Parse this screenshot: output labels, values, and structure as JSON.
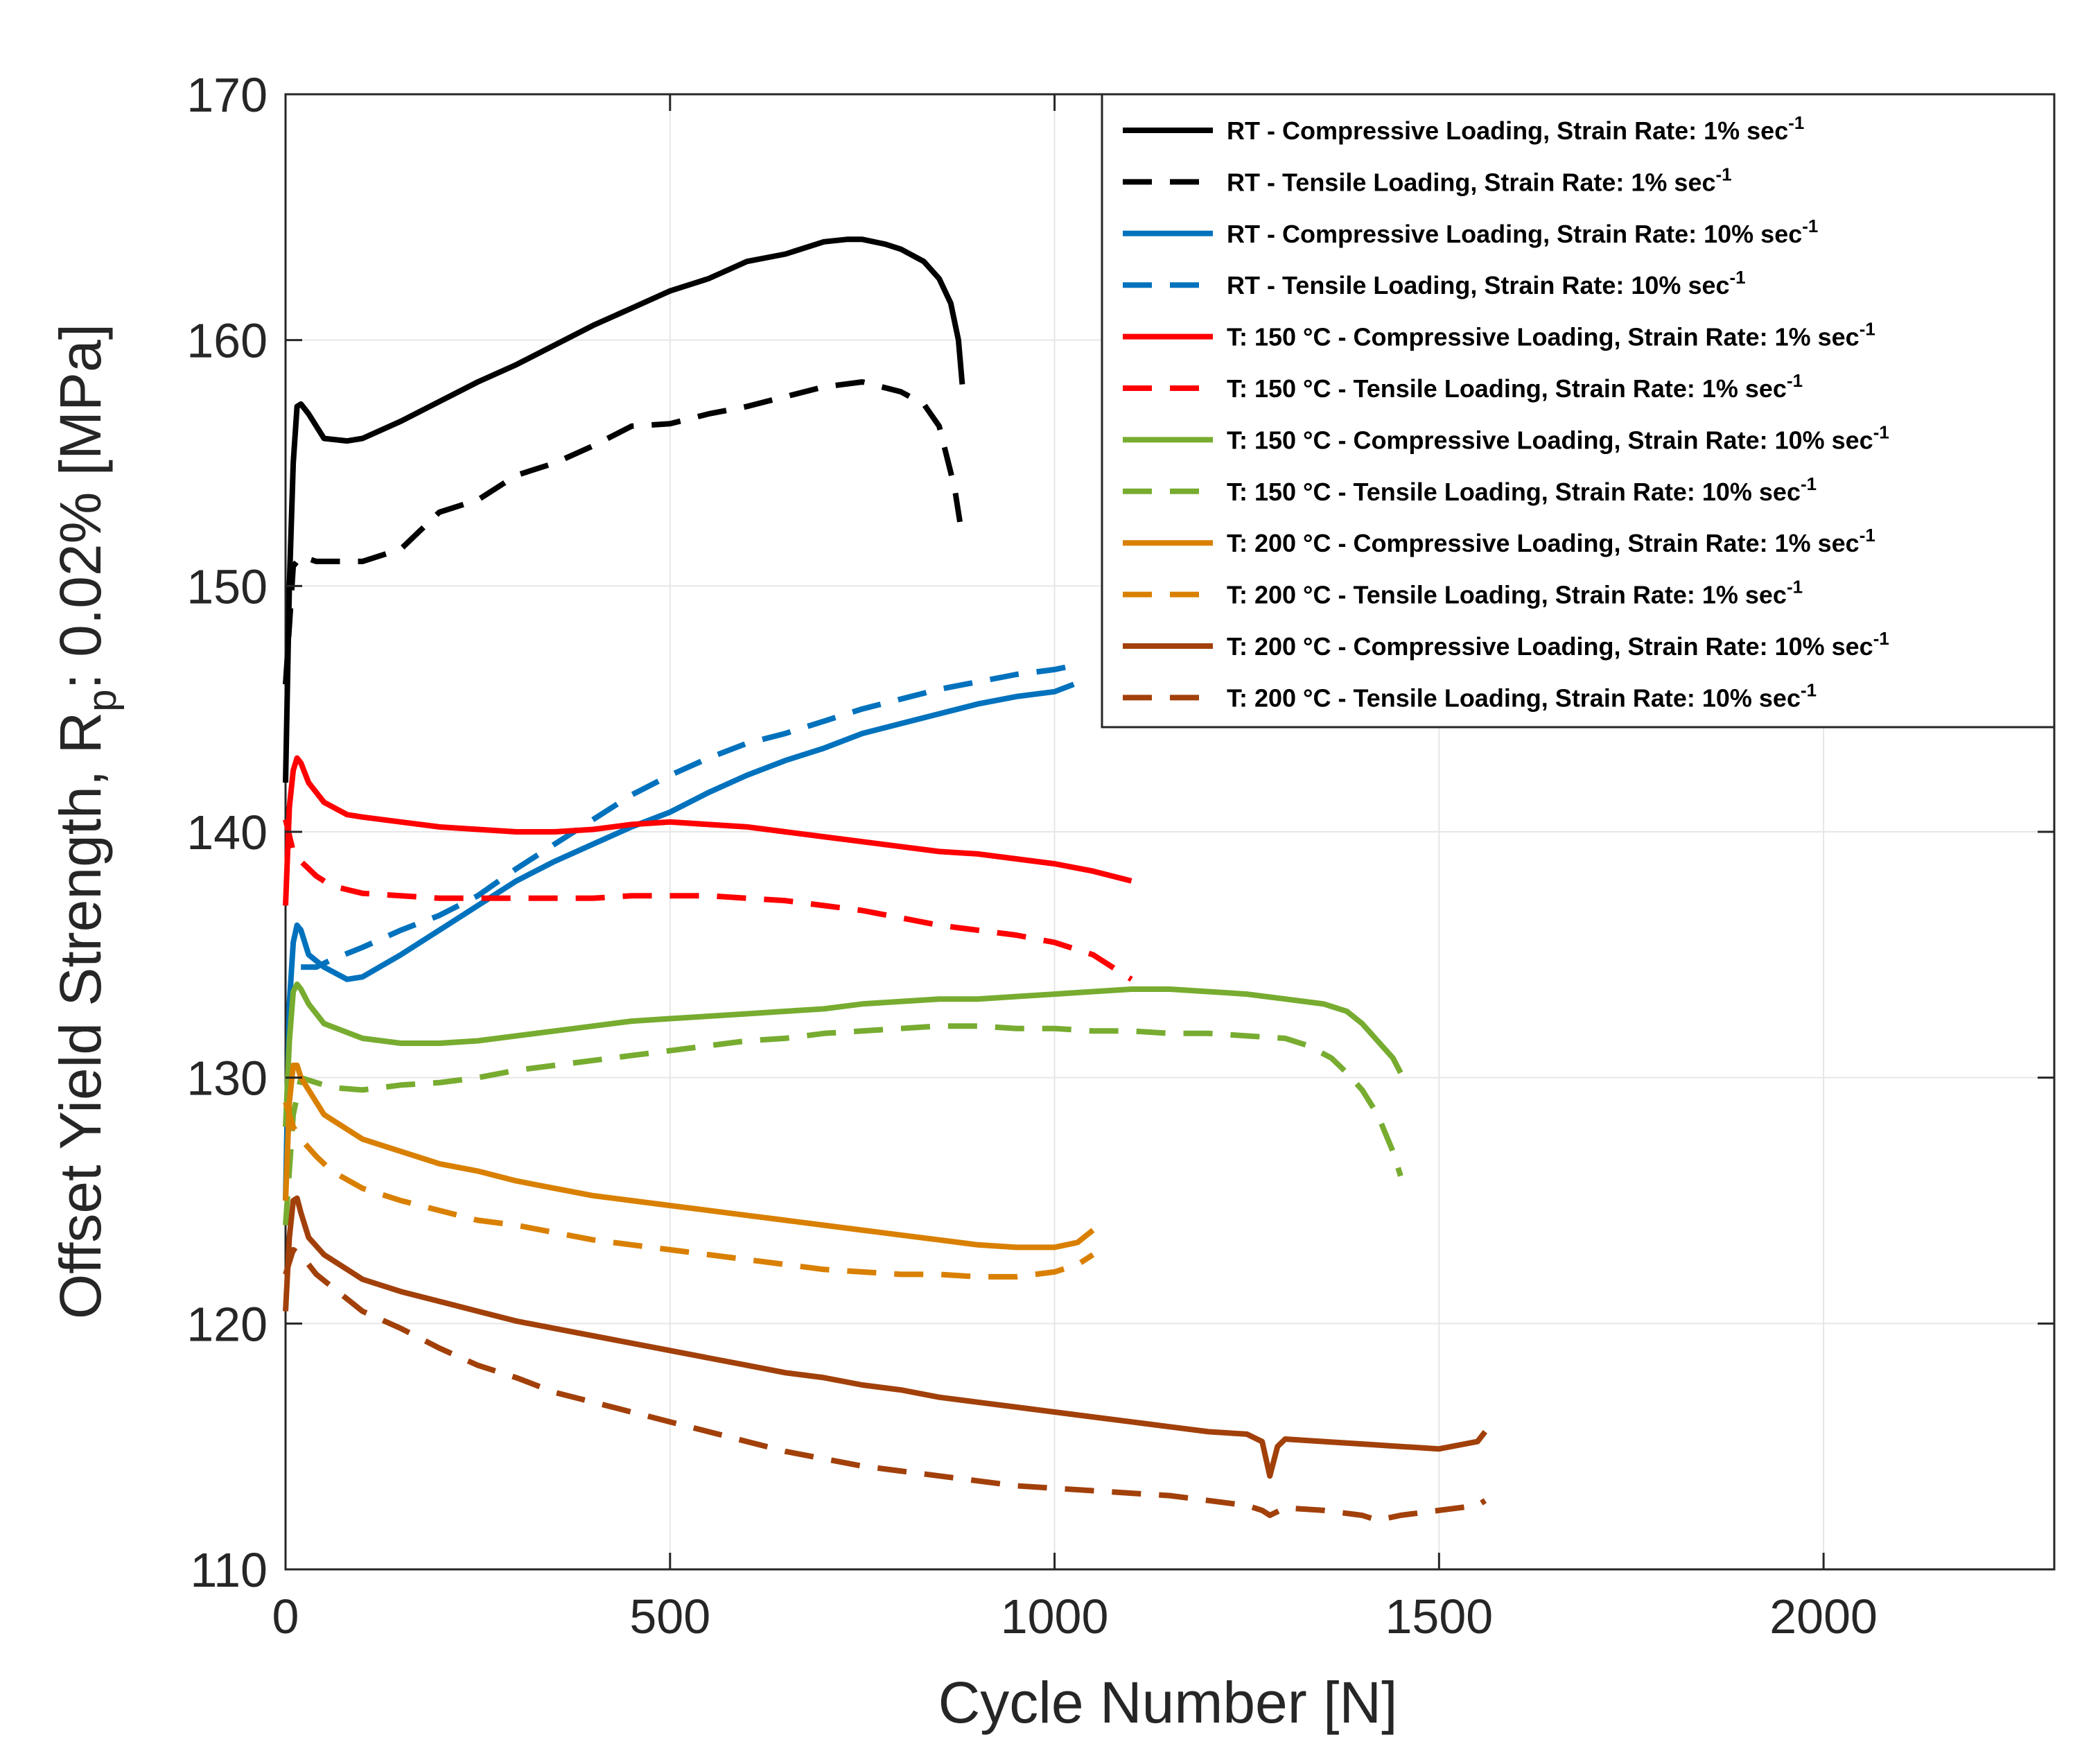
{
  "chart_data": {
    "type": "line",
    "title": "",
    "xlabel": "Cycle Number [N]",
    "ylabel_parts": [
      "Offset Yield Strength, R",
      "p",
      ": 0.02% [MPa]"
    ],
    "xlim": [
      0,
      2300
    ],
    "ylim": [
      110,
      170
    ],
    "xticks": [
      0,
      500,
      1000,
      1500,
      2000
    ],
    "yticks": [
      110,
      120,
      130,
      140,
      150,
      160,
      170
    ],
    "grid": true,
    "legend_position": "top-right",
    "series": [
      {
        "name": "RT - Compressive Loading, Strain Rate: 1% sec",
        "sup": "-1",
        "color": "#000000",
        "dash": "solid",
        "x": [
          0,
          5,
          10,
          15,
          20,
          30,
          50,
          80,
          100,
          150,
          200,
          250,
          300,
          350,
          400,
          450,
          500,
          550,
          600,
          650,
          700,
          730,
          750,
          780,
          800,
          830,
          850,
          865,
          875,
          880
        ],
        "y": [
          142,
          150,
          155,
          157.3,
          157.4,
          157,
          156,
          155.9,
          156,
          156.7,
          157.5,
          158.3,
          159,
          159.8,
          160.6,
          161.3,
          162,
          162.5,
          163.2,
          163.5,
          164,
          164.1,
          164.1,
          163.9,
          163.7,
          163.2,
          162.5,
          161.5,
          160,
          158.2
        ]
      },
      {
        "name": "RT - Tensile Loading, Strain Rate: 1% sec",
        "sup": "-1",
        "color": "#000000",
        "dash": "dashed",
        "x": [
          0,
          10,
          20,
          40,
          60,
          80,
          100,
          150,
          200,
          250,
          300,
          350,
          400,
          450,
          500,
          550,
          600,
          650,
          700,
          750,
          800,
          830,
          850,
          870,
          880
        ],
        "y": [
          146,
          150.8,
          151.2,
          151,
          151,
          151,
          151,
          151.5,
          153,
          153.5,
          154.5,
          155,
          155.7,
          156.5,
          156.6,
          157,
          157.3,
          157.7,
          158.1,
          158.3,
          157.9,
          157.4,
          156.5,
          154,
          152
        ]
      },
      {
        "name": "RT - Compressive Loading, Strain Rate: 10% sec",
        "sup": "-1",
        "color": "#0072BD",
        "dash": "solid",
        "x": [
          0,
          5,
          10,
          15,
          20,
          30,
          50,
          80,
          100,
          150,
          200,
          250,
          300,
          350,
          400,
          450,
          500,
          550,
          600,
          650,
          700,
          750,
          800,
          850,
          900,
          950,
          1000,
          1025
        ],
        "y": [
          125,
          133,
          135.5,
          136.2,
          136,
          135,
          134.5,
          134,
          134.1,
          135,
          136,
          137,
          138,
          138.8,
          139.5,
          140.2,
          140.8,
          141.6,
          142.3,
          142.9,
          143.4,
          144,
          144.4,
          144.8,
          145.2,
          145.5,
          145.7,
          146
        ]
      },
      {
        "name": "RT - Tensile Loading, Strain Rate: 10% sec",
        "sup": "-1",
        "color": "#0072BD",
        "dash": "dashed",
        "x": [
          20,
          40,
          60,
          100,
          150,
          200,
          250,
          300,
          350,
          400,
          450,
          500,
          550,
          600,
          650,
          700,
          750,
          800,
          850,
          900,
          950,
          1000,
          1030
        ],
        "y": [
          134.5,
          134.5,
          134.8,
          135.3,
          136,
          136.6,
          137.4,
          138.5,
          139.5,
          140.5,
          141.5,
          142.3,
          143,
          143.6,
          144,
          144.5,
          145,
          145.4,
          145.8,
          146.1,
          146.4,
          146.6,
          146.8
        ]
      },
      {
        "name": "T: 150 °C - Compressive Loading, Strain Rate: 1% sec",
        "sup": "-1",
        "color": "#FF0000",
        "dash": "solid",
        "x": [
          0,
          5,
          10,
          15,
          20,
          30,
          50,
          80,
          100,
          150,
          200,
          250,
          300,
          350,
          400,
          450,
          500,
          550,
          600,
          650,
          700,
          750,
          800,
          850,
          900,
          950,
          1000,
          1050,
          1100
        ],
        "y": [
          137,
          141,
          142.5,
          143,
          142.8,
          142,
          141.2,
          140.7,
          140.6,
          140.4,
          140.2,
          140.1,
          140,
          140,
          140.1,
          140.3,
          140.4,
          140.3,
          140.2,
          140,
          139.8,
          139.6,
          139.4,
          139.2,
          139.1,
          138.9,
          138.7,
          138.4,
          138
        ]
      },
      {
        "name": "T: 150 °C - Tensile Loading, Strain Rate: 1% sec",
        "sup": "-1",
        "color": "#FF0000",
        "dash": "dashed",
        "x": [
          0,
          10,
          20,
          40,
          60,
          100,
          150,
          200,
          250,
          300,
          350,
          400,
          450,
          500,
          550,
          600,
          650,
          700,
          750,
          800,
          850,
          900,
          950,
          1000,
          1050,
          1100
        ],
        "y": [
          140.5,
          139.2,
          138.8,
          138.2,
          137.8,
          137.5,
          137.4,
          137.3,
          137.3,
          137.3,
          137.3,
          137.3,
          137.4,
          137.4,
          137.4,
          137.3,
          137.2,
          137,
          136.8,
          136.5,
          136.2,
          136,
          135.8,
          135.5,
          135,
          134
        ]
      },
      {
        "name": "T: 150 °C - Compressive Loading, Strain Rate: 10% sec",
        "sup": "-1",
        "color": "#77AC30",
        "dash": "solid",
        "x": [
          0,
          5,
          10,
          15,
          20,
          30,
          50,
          100,
          150,
          200,
          250,
          300,
          350,
          400,
          450,
          500,
          550,
          600,
          650,
          700,
          750,
          800,
          850,
          900,
          950,
          1000,
          1050,
          1100,
          1150,
          1200,
          1250,
          1300,
          1350,
          1380,
          1400,
          1420,
          1440,
          1450
        ],
        "y": [
          128,
          131.5,
          133.5,
          133.8,
          133.6,
          133,
          132.2,
          131.6,
          131.4,
          131.4,
          131.5,
          131.7,
          131.9,
          132.1,
          132.3,
          132.4,
          132.5,
          132.6,
          132.7,
          132.8,
          133,
          133.1,
          133.2,
          133.2,
          133.3,
          133.4,
          133.5,
          133.6,
          133.6,
          133.5,
          133.4,
          133.2,
          133,
          132.7,
          132.2,
          131.5,
          130.8,
          130.2
        ]
      },
      {
        "name": "T: 150 °C - Tensile Loading, Strain Rate: 10% sec",
        "sup": "-1",
        "color": "#77AC30",
        "dash": "dashed",
        "x": [
          0,
          10,
          20,
          40,
          60,
          100,
          150,
          200,
          250,
          300,
          350,
          400,
          450,
          500,
          550,
          600,
          650,
          700,
          750,
          800,
          850,
          900,
          950,
          1000,
          1050,
          1100,
          1150,
          1200,
          1250,
          1300,
          1330,
          1360,
          1380,
          1400,
          1420,
          1440,
          1450
        ],
        "y": [
          124,
          128.5,
          130,
          129.8,
          129.6,
          129.5,
          129.7,
          129.8,
          130,
          130.3,
          130.5,
          130.7,
          130.9,
          131.1,
          131.3,
          131.5,
          131.6,
          131.8,
          131.9,
          132,
          132.1,
          132.1,
          132,
          132,
          131.9,
          131.9,
          131.8,
          131.8,
          131.7,
          131.6,
          131.3,
          130.8,
          130.2,
          129.5,
          128.5,
          127,
          126
        ]
      },
      {
        "name": "T: 200 °C - Compressive Loading, Strain Rate: 1% sec",
        "sup": "-1",
        "color": "#D98000",
        "dash": "solid",
        "x": [
          0,
          5,
          10,
          15,
          20,
          30,
          50,
          100,
          150,
          200,
          250,
          300,
          350,
          400,
          450,
          500,
          550,
          600,
          650,
          700,
          750,
          800,
          850,
          900,
          950,
          1000,
          1030,
          1050
        ],
        "y": [
          125,
          129,
          130.5,
          130.5,
          130,
          129.5,
          128.5,
          127.5,
          127,
          126.5,
          126.2,
          125.8,
          125.5,
          125.2,
          125,
          124.8,
          124.6,
          124.4,
          124.2,
          124,
          123.8,
          123.6,
          123.4,
          123.2,
          123.1,
          123.1,
          123.3,
          123.8
        ]
      },
      {
        "name": "T: 200 °C - Tensile Loading, Strain Rate: 1% sec",
        "sup": "-1",
        "color": "#D98000",
        "dash": "dashed",
        "x": [
          0,
          10,
          20,
          40,
          60,
          100,
          150,
          200,
          250,
          300,
          350,
          400,
          450,
          500,
          550,
          600,
          650,
          700,
          750,
          800,
          850,
          900,
          950,
          1000,
          1030,
          1050
        ],
        "y": [
          129,
          128,
          127.5,
          126.8,
          126.2,
          125.5,
          125,
          124.6,
          124.2,
          124,
          123.7,
          123.4,
          123.2,
          123,
          122.8,
          122.6,
          122.4,
          122.2,
          122.1,
          122,
          122,
          121.9,
          121.9,
          122.1,
          122.4,
          122.8
        ]
      },
      {
        "name": "T: 200 °C - Compressive Loading, Strain Rate: 10% sec",
        "sup": "-1",
        "color": "#A2400A",
        "dash": "solid",
        "x": [
          0,
          5,
          10,
          15,
          20,
          30,
          50,
          100,
          150,
          200,
          250,
          300,
          350,
          400,
          450,
          500,
          550,
          600,
          650,
          700,
          750,
          800,
          850,
          900,
          950,
          1000,
          1050,
          1100,
          1150,
          1200,
          1250,
          1270,
          1280,
          1290,
          1300,
          1350,
          1400,
          1450,
          1500,
          1550,
          1560
        ],
        "y": [
          120.5,
          123.5,
          125,
          125.1,
          124.5,
          123.5,
          122.8,
          121.8,
          121.3,
          120.9,
          120.5,
          120.1,
          119.8,
          119.5,
          119.2,
          118.9,
          118.6,
          118.3,
          118,
          117.8,
          117.5,
          117.3,
          117,
          116.8,
          116.6,
          116.4,
          116.2,
          116,
          115.8,
          115.6,
          115.5,
          115.2,
          113.8,
          115,
          115.3,
          115.2,
          115.1,
          115,
          114.9,
          115.2,
          115.6
        ]
      },
      {
        "name": "T: 200 °C - Tensile Loading, Strain Rate: 10% sec",
        "sup": "-1",
        "color": "#A2400A",
        "dash": "dashed",
        "x": [
          0,
          10,
          20,
          40,
          60,
          100,
          150,
          200,
          250,
          300,
          350,
          400,
          450,
          500,
          550,
          600,
          650,
          700,
          750,
          800,
          850,
          900,
          950,
          1000,
          1050,
          1100,
          1150,
          1200,
          1250,
          1270,
          1280,
          1300,
          1350,
          1400,
          1420,
          1450,
          1500,
          1550,
          1560
        ],
        "y": [
          122,
          123,
          122.8,
          122,
          121.5,
          120.5,
          119.8,
          119,
          118.3,
          117.8,
          117.2,
          116.8,
          116.4,
          116,
          115.6,
          115.2,
          114.8,
          114.5,
          114.2,
          114,
          113.8,
          113.6,
          113.4,
          113.3,
          113.2,
          113.1,
          113,
          112.8,
          112.6,
          112.4,
          112.2,
          112.5,
          112.4,
          112.2,
          112,
          112.2,
          112.4,
          112.6,
          112.8
        ]
      }
    ]
  }
}
